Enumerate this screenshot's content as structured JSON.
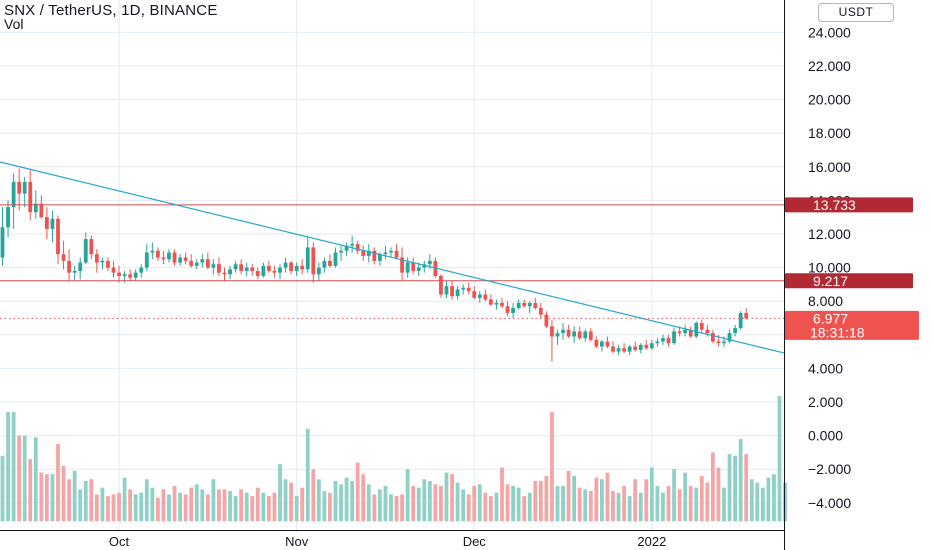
{
  "header": {
    "title": "SNX / TetherUS, 1D, BINANCE",
    "volume_label": "Vol"
  },
  "price_axis": {
    "currency_button": "USDT"
  },
  "colors": {
    "up": "#26a69a",
    "down": "#ef5350",
    "vol_up": "#8fd0c7",
    "vol_down": "#f4a6a6",
    "trendline": "#2aa7cf",
    "level_line": "#d44b4b",
    "grid": "#e1ecf2",
    "axis_text": "#131722",
    "axis_line": "#131722"
  },
  "chart_data": {
    "type": "candlestick",
    "title": "SNX / TetherUS, 1D, BINANCE",
    "y_axis": {
      "side": "right",
      "range": [
        -5.2,
        25.3
      ],
      "ticks": [
        "24.000",
        "22.000",
        "20.000",
        "18.000",
        "16.000",
        "14.000",
        "12.000",
        "10.000",
        "8.000",
        "6.000",
        "4.000",
        "2.000",
        "0.000",
        "−2.000",
        "−4.000"
      ],
      "tick_values": [
        24,
        22,
        20,
        18,
        16,
        14,
        12,
        10,
        8,
        6,
        4,
        2,
        0,
        -2,
        -4
      ]
    },
    "x_axis": {
      "labels": [
        "Oct",
        "Nov",
        "Dec",
        "2022"
      ],
      "label_bar_index": [
        21,
        53,
        85,
        117
      ]
    },
    "grid": true,
    "horizontal_levels": [
      {
        "label": "13.733",
        "value": 13.733
      },
      {
        "label": "9.217",
        "value": 9.217
      }
    ],
    "last_price": {
      "label": "6.977",
      "value": 6.977,
      "countdown": "18:31:18"
    },
    "trendline": {
      "from": {
        "bar": 0,
        "value": 16.25
      },
      "to": {
        "bar": 128,
        "value": 5.95
      }
    },
    "volume_bottom": -5.1,
    "volume_max": 2.35,
    "candles": [
      [
        10.6,
        13.6,
        10.1,
        12.4
      ],
      [
        12.4,
        14.0,
        11.8,
        13.6
      ],
      [
        13.6,
        15.6,
        12.3,
        15.1
      ],
      [
        15.1,
        15.9,
        13.4,
        14.4
      ],
      [
        14.4,
        15.4,
        13.6,
        15.1
      ],
      [
        15.1,
        15.8,
        12.8,
        13.3
      ],
      [
        13.3,
        14.6,
        12.9,
        13.8
      ],
      [
        13.8,
        14.3,
        12.9,
        13.0
      ],
      [
        13.0,
        13.6,
        11.7,
        12.3
      ],
      [
        12.3,
        13.4,
        11.5,
        12.9
      ],
      [
        12.9,
        13.1,
        10.2,
        10.8
      ],
      [
        10.8,
        11.6,
        9.9,
        10.4
      ],
      [
        10.4,
        11.1,
        9.2,
        9.7
      ],
      [
        9.7,
        10.1,
        9.2,
        9.8
      ],
      [
        9.8,
        10.6,
        9.3,
        10.3
      ],
      [
        10.3,
        12.1,
        10.2,
        11.7
      ],
      [
        11.7,
        11.9,
        10.5,
        10.8
      ],
      [
        10.8,
        11.1,
        9.7,
        10.3
      ],
      [
        10.3,
        10.6,
        9.9,
        10.4
      ],
      [
        10.4,
        10.6,
        9.8,
        10.0
      ],
      [
        10.0,
        10.4,
        9.4,
        9.7
      ],
      [
        9.7,
        10.1,
        9.1,
        9.5
      ],
      [
        9.5,
        9.8,
        9.1,
        9.6
      ],
      [
        9.6,
        9.9,
        9.2,
        9.4
      ],
      [
        9.4,
        9.9,
        9.2,
        9.7
      ],
      [
        9.7,
        10.2,
        9.4,
        10.0
      ],
      [
        10.0,
        11.4,
        9.8,
        10.9
      ],
      [
        10.9,
        11.5,
        10.5,
        11.0
      ],
      [
        11.0,
        11.2,
        10.4,
        10.6
      ],
      [
        10.6,
        11.0,
        10.2,
        10.5
      ],
      [
        10.5,
        11.1,
        10.3,
        10.9
      ],
      [
        10.9,
        11.1,
        10.1,
        10.3
      ],
      [
        10.3,
        10.8,
        10.1,
        10.6
      ],
      [
        10.6,
        10.9,
        10.2,
        10.4
      ],
      [
        10.4,
        10.8,
        10.0,
        10.1
      ],
      [
        10.1,
        10.5,
        9.9,
        10.3
      ],
      [
        10.3,
        10.8,
        10.0,
        10.5
      ],
      [
        10.5,
        10.9,
        9.9,
        10.0
      ],
      [
        10.0,
        10.5,
        9.6,
        10.2
      ],
      [
        10.2,
        10.6,
        9.5,
        9.7
      ],
      [
        9.7,
        10.0,
        9.2,
        9.6
      ],
      [
        9.6,
        10.1,
        9.3,
        9.9
      ],
      [
        9.9,
        10.4,
        9.7,
        10.2
      ],
      [
        10.2,
        10.5,
        9.6,
        9.8
      ],
      [
        9.8,
        10.3,
        9.5,
        10.0
      ],
      [
        10.0,
        10.2,
        9.5,
        9.8
      ],
      [
        9.8,
        10.0,
        9.3,
        9.5
      ],
      [
        9.5,
        10.3,
        9.4,
        10.1
      ],
      [
        10.1,
        10.4,
        9.7,
        9.8
      ],
      [
        9.8,
        10.1,
        9.4,
        9.7
      ],
      [
        9.7,
        10.2,
        9.3,
        10.0
      ],
      [
        10.0,
        10.6,
        9.7,
        10.3
      ],
      [
        10.3,
        10.4,
        9.6,
        9.8
      ],
      [
        9.8,
        10.3,
        9.5,
        10.1
      ],
      [
        10.1,
        10.5,
        9.6,
        9.9
      ],
      [
        9.9,
        11.8,
        9.7,
        11.2
      ],
      [
        11.2,
        11.5,
        9.1,
        9.6
      ],
      [
        9.6,
        10.3,
        9.2,
        10.0
      ],
      [
        10.0,
        10.6,
        9.7,
        10.4
      ],
      [
        10.4,
        10.8,
        10.0,
        10.1
      ],
      [
        10.1,
        11.2,
        10.0,
        10.9
      ],
      [
        10.9,
        11.3,
        10.4,
        11.0
      ],
      [
        11.0,
        11.5,
        10.7,
        11.3
      ],
      [
        11.3,
        11.9,
        10.9,
        11.4
      ],
      [
        11.4,
        11.6,
        10.8,
        11.0
      ],
      [
        11.0,
        11.3,
        10.4,
        10.7
      ],
      [
        10.7,
        11.4,
        10.3,
        11.0
      ],
      [
        11.0,
        11.2,
        10.2,
        10.4
      ],
      [
        10.4,
        10.9,
        10.1,
        10.8
      ],
      [
        10.8,
        11.3,
        10.5,
        10.9
      ],
      [
        10.9,
        11.2,
        10.6,
        11.0
      ],
      [
        11.0,
        11.4,
        10.5,
        10.6
      ],
      [
        10.6,
        11.2,
        9.2,
        9.7
      ],
      [
        9.7,
        10.6,
        9.4,
        10.3
      ],
      [
        10.3,
        10.6,
        9.6,
        9.8
      ],
      [
        9.8,
        10.3,
        9.5,
        10.0
      ],
      [
        10.0,
        10.4,
        9.7,
        10.2
      ],
      [
        10.2,
        10.8,
        9.9,
        10.4
      ],
      [
        10.4,
        10.6,
        9.4,
        9.5
      ],
      [
        9.5,
        9.6,
        8.2,
        8.4
      ],
      [
        8.4,
        9.2,
        8.2,
        8.9
      ],
      [
        8.9,
        9.2,
        8.1,
        8.3
      ],
      [
        8.3,
        8.9,
        8.1,
        8.7
      ],
      [
        8.7,
        9.0,
        8.4,
        8.8
      ],
      [
        8.8,
        9.1,
        8.4,
        8.6
      ],
      [
        8.6,
        8.9,
        8.1,
        8.2
      ],
      [
        8.2,
        8.6,
        7.9,
        8.4
      ],
      [
        8.4,
        8.7,
        8.0,
        8.1
      ],
      [
        8.1,
        8.4,
        7.7,
        7.8
      ],
      [
        7.8,
        8.1,
        7.5,
        7.9
      ],
      [
        7.9,
        8.2,
        7.6,
        7.7
      ],
      [
        7.7,
        8.0,
        7.1,
        7.3
      ],
      [
        7.3,
        7.9,
        7.0,
        7.6
      ],
      [
        7.6,
        8.1,
        7.5,
        7.9
      ],
      [
        7.9,
        8.1,
        7.6,
        7.7
      ],
      [
        7.7,
        8.0,
        7.3,
        7.9
      ],
      [
        7.9,
        8.2,
        7.5,
        7.6
      ],
      [
        7.6,
        7.9,
        7.0,
        7.2
      ],
      [
        7.2,
        7.4,
        6.4,
        6.5
      ],
      [
        6.5,
        6.9,
        4.4,
        5.9
      ],
      [
        5.9,
        6.3,
        5.4,
        6.1
      ],
      [
        6.1,
        6.7,
        5.7,
        6.3
      ],
      [
        6.3,
        6.6,
        5.8,
        5.9
      ],
      [
        5.9,
        6.5,
        5.5,
        6.2
      ],
      [
        6.2,
        6.5,
        5.7,
        5.8
      ],
      [
        5.8,
        6.3,
        5.6,
        6.2
      ],
      [
        6.2,
        6.4,
        5.6,
        5.7
      ],
      [
        5.7,
        5.9,
        5.2,
        5.3
      ],
      [
        5.3,
        5.7,
        5.0,
        5.6
      ],
      [
        5.6,
        5.9,
        5.2,
        5.3
      ],
      [
        5.3,
        5.6,
        4.9,
        5.0
      ],
      [
        5.0,
        5.4,
        4.8,
        5.2
      ],
      [
        5.2,
        5.5,
        4.9,
        5.0
      ],
      [
        5.0,
        5.4,
        4.8,
        5.3
      ],
      [
        5.3,
        5.6,
        5.0,
        5.1
      ],
      [
        5.1,
        5.5,
        4.9,
        5.4
      ],
      [
        5.4,
        5.7,
        5.1,
        5.2
      ],
      [
        5.2,
        5.7,
        5.1,
        5.5
      ],
      [
        5.5,
        5.8,
        5.3,
        5.6
      ],
      [
        5.6,
        6.0,
        5.4,
        5.8
      ],
      [
        5.8,
        6.0,
        5.3,
        5.5
      ],
      [
        5.5,
        6.4,
        5.4,
        6.2
      ],
      [
        6.2,
        6.5,
        5.9,
        6.1
      ],
      [
        6.1,
        6.6,
        5.9,
        6.3
      ],
      [
        6.3,
        6.5,
        5.8,
        5.9
      ],
      [
        5.9,
        6.8,
        5.8,
        6.7
      ],
      [
        6.7,
        6.9,
        6.1,
        6.3
      ],
      [
        6.3,
        6.6,
        5.9,
        6.1
      ],
      [
        6.1,
        6.3,
        5.5,
        5.6
      ],
      [
        5.6,
        6.0,
        5.3,
        5.5
      ],
      [
        5.5,
        5.9,
        5.3,
        5.6
      ],
      [
        5.6,
        6.3,
        5.5,
        6.1
      ],
      [
        6.1,
        6.6,
        5.9,
        6.4
      ],
      [
        6.4,
        7.4,
        6.3,
        7.3
      ],
      [
        7.3,
        7.6,
        6.9,
        6.98
      ]
    ],
    "volume": [
      -1.2,
      1.4,
      1.4,
      0.0,
      0.0,
      -1.4,
      -0.1,
      -2.2,
      -2.3,
      -2.3,
      -0.5,
      -1.8,
      -2.6,
      -2.1,
      -3.2,
      -2.7,
      -2.6,
      -3.5,
      -3.1,
      -3.6,
      -3.5,
      -3.4,
      -2.5,
      -3.2,
      -3.5,
      -3.4,
      -2.6,
      -3.1,
      -3.7,
      -3.2,
      -3.5,
      -3.0,
      -3.4,
      -3.5,
      -3.1,
      -2.9,
      -3.2,
      -3.5,
      -2.6,
      -3.2,
      -3.2,
      -3.3,
      -3.6,
      -3.2,
      -3.4,
      -3.6,
      -3.1,
      -3.4,
      -3.6,
      -3.4,
      -1.7,
      -2.6,
      -2.8,
      -3.6,
      -3.1,
      0.4,
      -2.0,
      -2.6,
      -3.3,
      -3.4,
      -2.7,
      -2.9,
      -2.5,
      -2.7,
      -1.6,
      -2.3,
      -2.9,
      -3.5,
      -3.2,
      -3.0,
      -3.5,
      -3.6,
      -3.5,
      -2.0,
      -3.0,
      -3.1,
      -2.6,
      -2.7,
      -2.9,
      -3.0,
      -2.2,
      -2.3,
      -2.8,
      -3.2,
      -3.5,
      -3.0,
      -2.9,
      -3.4,
      -3.6,
      -3.4,
      -1.9,
      -2.9,
      -3.0,
      -3.1,
      -3.6,
      -3.4,
      -2.7,
      -2.7,
      -2.4,
      1.4,
      -3.0,
      -3.0,
      -2.1,
      -2.4,
      -3.1,
      -3.2,
      -3.3,
      -2.5,
      -2.6,
      -2.2,
      -3.3,
      -3.4,
      -3.0,
      -3.6,
      -2.6,
      -3.4,
      -2.6,
      -1.9,
      -3.0,
      -3.4,
      -3.0,
      -2.0,
      -3.2,
      -2.2,
      -3.0,
      -3.1,
      -2.4,
      -2.8,
      -1.0,
      -1.9,
      -3.1,
      -1.1,
      -1.2,
      -0.2,
      -1.1,
      -2.6,
      -2.8,
      -3.1,
      -2.5,
      -2.3,
      2.35,
      -2.8
    ]
  }
}
